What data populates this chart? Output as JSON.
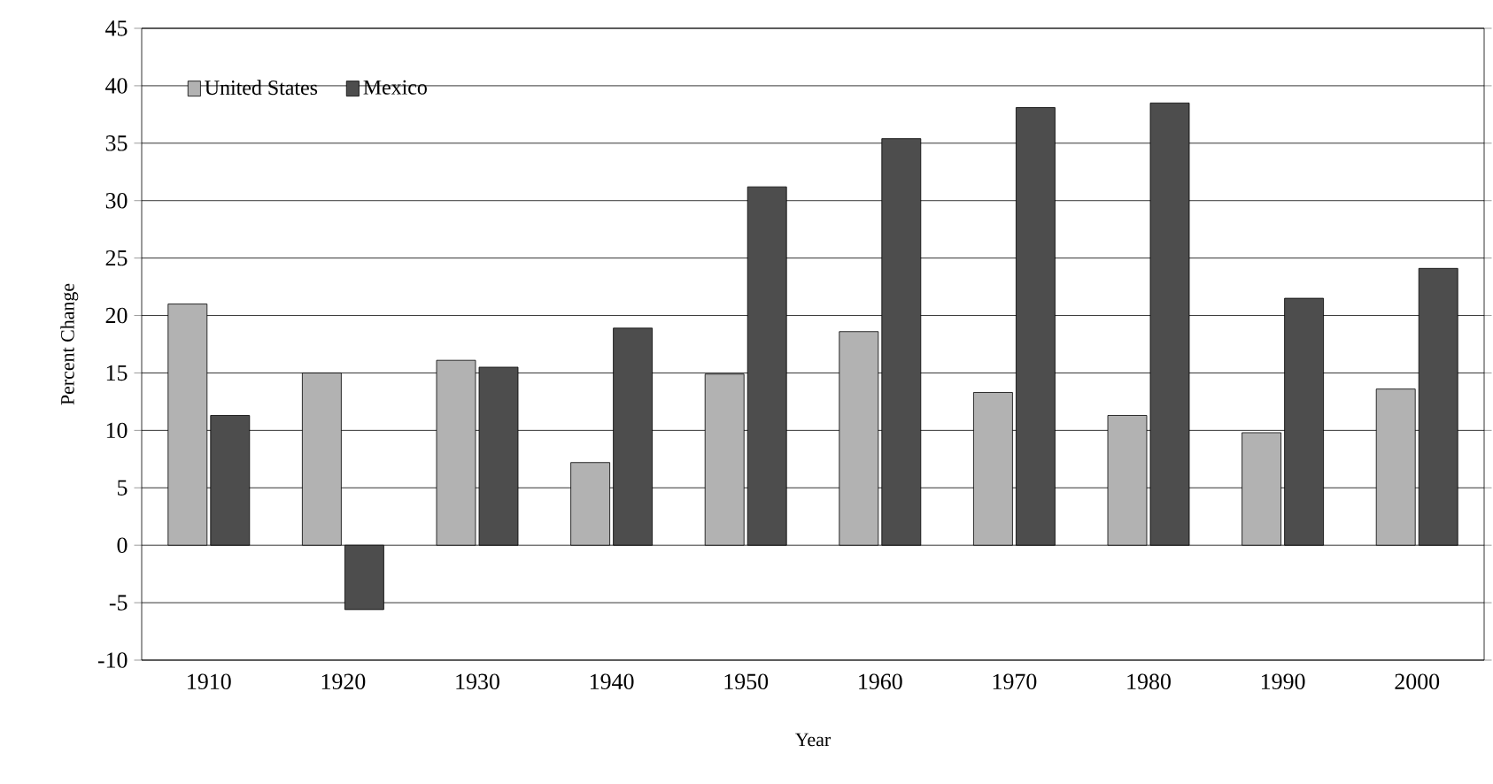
{
  "chart_data": {
    "type": "bar",
    "xlabel": "Year",
    "ylabel": "Percent Change",
    "categories": [
      "1910",
      "1920",
      "1930",
      "1940",
      "1950",
      "1960",
      "1970",
      "1980",
      "1990",
      "2000"
    ],
    "series": [
      {
        "name": "United States",
        "color": "#b2b2b2",
        "values": [
          21,
          15,
          16.1,
          7.2,
          14.9,
          18.6,
          13.3,
          11.3,
          9.8,
          13.6
        ]
      },
      {
        "name": "Mexico",
        "color": "#4d4d4d",
        "values": [
          11.3,
          -5.6,
          15.5,
          18.9,
          31.2,
          35.4,
          38.1,
          38.5,
          21.5,
          24.1
        ]
      }
    ],
    "ylim": [
      -10,
      45
    ],
    "yticks": [
      -10,
      -5,
      0,
      5,
      10,
      15,
      20,
      25,
      30,
      35,
      40,
      45
    ],
    "grid": "y",
    "legend": "top left"
  }
}
